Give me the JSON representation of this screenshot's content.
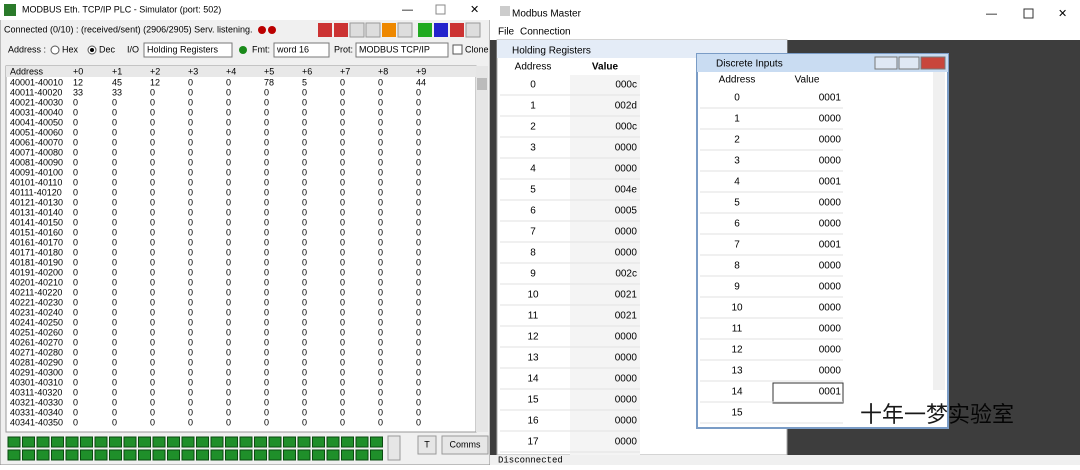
{
  "simulator": {
    "title": "MODBUS Eth. TCP/IP PLC - Simulator (port: 502)",
    "status": "Connected (0/10) : (received/sent) (2906/2905) Serv. listening.",
    "address_label": "Address :",
    "hex": "Hex",
    "dec": "Dec",
    "io_label": "I/O",
    "io_value": "Holding Registers",
    "fmt_label": "Fmt:",
    "fmt_value": "word 16",
    "prot_label": "Prot:",
    "prot_value": "MODBUS TCP/IP",
    "clone": "Clone",
    "table": {
      "header": [
        "Address",
        "+0",
        "+1",
        "+2",
        "+3",
        "+4",
        "+5",
        "+6",
        "+7",
        "+8",
        "+9"
      ],
      "rows": [
        [
          "40001-40010",
          12,
          45,
          12,
          0,
          0,
          78,
          5,
          0,
          0,
          44
        ],
        [
          "40011-40020",
          33,
          33,
          0,
          0,
          0,
          0,
          0,
          0,
          0,
          0
        ],
        [
          "40021-40030",
          0,
          0,
          0,
          0,
          0,
          0,
          0,
          0,
          0,
          0
        ],
        [
          "40031-40040",
          0,
          0,
          0,
          0,
          0,
          0,
          0,
          0,
          0,
          0
        ],
        [
          "40041-40050",
          0,
          0,
          0,
          0,
          0,
          0,
          0,
          0,
          0,
          0
        ],
        [
          "40051-40060",
          0,
          0,
          0,
          0,
          0,
          0,
          0,
          0,
          0,
          0
        ],
        [
          "40061-40070",
          0,
          0,
          0,
          0,
          0,
          0,
          0,
          0,
          0,
          0
        ],
        [
          "40071-40080",
          0,
          0,
          0,
          0,
          0,
          0,
          0,
          0,
          0,
          0
        ],
        [
          "40081-40090",
          0,
          0,
          0,
          0,
          0,
          0,
          0,
          0,
          0,
          0
        ],
        [
          "40091-40100",
          0,
          0,
          0,
          0,
          0,
          0,
          0,
          0,
          0,
          0
        ],
        [
          "40101-40110",
          0,
          0,
          0,
          0,
          0,
          0,
          0,
          0,
          0,
          0
        ],
        [
          "40111-40120",
          0,
          0,
          0,
          0,
          0,
          0,
          0,
          0,
          0,
          0
        ],
        [
          "40121-40130",
          0,
          0,
          0,
          0,
          0,
          0,
          0,
          0,
          0,
          0
        ],
        [
          "40131-40140",
          0,
          0,
          0,
          0,
          0,
          0,
          0,
          0,
          0,
          0
        ],
        [
          "40141-40150",
          0,
          0,
          0,
          0,
          0,
          0,
          0,
          0,
          0,
          0
        ],
        [
          "40151-40160",
          0,
          0,
          0,
          0,
          0,
          0,
          0,
          0,
          0,
          0
        ],
        [
          "40161-40170",
          0,
          0,
          0,
          0,
          0,
          0,
          0,
          0,
          0,
          0
        ],
        [
          "40171-40180",
          0,
          0,
          0,
          0,
          0,
          0,
          0,
          0,
          0,
          0
        ],
        [
          "40181-40190",
          0,
          0,
          0,
          0,
          0,
          0,
          0,
          0,
          0,
          0
        ],
        [
          "40191-40200",
          0,
          0,
          0,
          0,
          0,
          0,
          0,
          0,
          0,
          0
        ],
        [
          "40201-40210",
          0,
          0,
          0,
          0,
          0,
          0,
          0,
          0,
          0,
          0
        ],
        [
          "40211-40220",
          0,
          0,
          0,
          0,
          0,
          0,
          0,
          0,
          0,
          0
        ],
        [
          "40221-40230",
          0,
          0,
          0,
          0,
          0,
          0,
          0,
          0,
          0,
          0
        ],
        [
          "40231-40240",
          0,
          0,
          0,
          0,
          0,
          0,
          0,
          0,
          0,
          0
        ],
        [
          "40241-40250",
          0,
          0,
          0,
          0,
          0,
          0,
          0,
          0,
          0,
          0
        ],
        [
          "40251-40260",
          0,
          0,
          0,
          0,
          0,
          0,
          0,
          0,
          0,
          0
        ],
        [
          "40261-40270",
          0,
          0,
          0,
          0,
          0,
          0,
          0,
          0,
          0,
          0
        ],
        [
          "40271-40280",
          0,
          0,
          0,
          0,
          0,
          0,
          0,
          0,
          0,
          0
        ],
        [
          "40281-40290",
          0,
          0,
          0,
          0,
          0,
          0,
          0,
          0,
          0,
          0
        ],
        [
          "40291-40300",
          0,
          0,
          0,
          0,
          0,
          0,
          0,
          0,
          0,
          0
        ],
        [
          "40301-40310",
          0,
          0,
          0,
          0,
          0,
          0,
          0,
          0,
          0,
          0
        ],
        [
          "40311-40320",
          0,
          0,
          0,
          0,
          0,
          0,
          0,
          0,
          0,
          0
        ],
        [
          "40321-40330",
          0,
          0,
          0,
          0,
          0,
          0,
          0,
          0,
          0,
          0
        ],
        [
          "40331-40340",
          0,
          0,
          0,
          0,
          0,
          0,
          0,
          0,
          0,
          0
        ],
        [
          "40341-40350",
          0,
          0,
          0,
          0,
          0,
          0,
          0,
          0,
          0,
          0
        ]
      ]
    },
    "buttons": [
      "T",
      "Comms"
    ]
  },
  "master": {
    "title": "Modbus Master",
    "menu": [
      "File",
      "Connection"
    ],
    "holding": {
      "title": "Holding Registers",
      "header": [
        "Address",
        "Value"
      ],
      "rows": [
        [
          0,
          "000c"
        ],
        [
          1,
          "002d"
        ],
        [
          2,
          "000c"
        ],
        [
          3,
          "0000"
        ],
        [
          4,
          "0000"
        ],
        [
          5,
          "004e"
        ],
        [
          6,
          "0005"
        ],
        [
          7,
          "0000"
        ],
        [
          8,
          "0000"
        ],
        [
          9,
          "002c"
        ],
        [
          10,
          "0021"
        ],
        [
          11,
          "0021"
        ],
        [
          12,
          "0000"
        ],
        [
          13,
          "0000"
        ],
        [
          14,
          "0000"
        ],
        [
          15,
          "0000"
        ],
        [
          16,
          "0000"
        ],
        [
          17,
          "0000"
        ]
      ]
    },
    "discrete": {
      "title": "Discrete Inputs",
      "header": [
        "Address",
        "Value"
      ],
      "rows": [
        [
          0,
          "0001"
        ],
        [
          1,
          "0000"
        ],
        [
          2,
          "0000"
        ],
        [
          3,
          "0000"
        ],
        [
          4,
          "0001"
        ],
        [
          5,
          "0000"
        ],
        [
          6,
          "0000"
        ],
        [
          7,
          "0001"
        ],
        [
          8,
          "0000"
        ],
        [
          9,
          "0000"
        ],
        [
          10,
          "0000"
        ],
        [
          11,
          "0000"
        ],
        [
          12,
          "0000"
        ],
        [
          13,
          "0000"
        ],
        [
          14,
          "0001"
        ],
        [
          15,
          null
        ]
      ]
    },
    "status": "Disconnected"
  },
  "watermark": "十年一梦实验室"
}
